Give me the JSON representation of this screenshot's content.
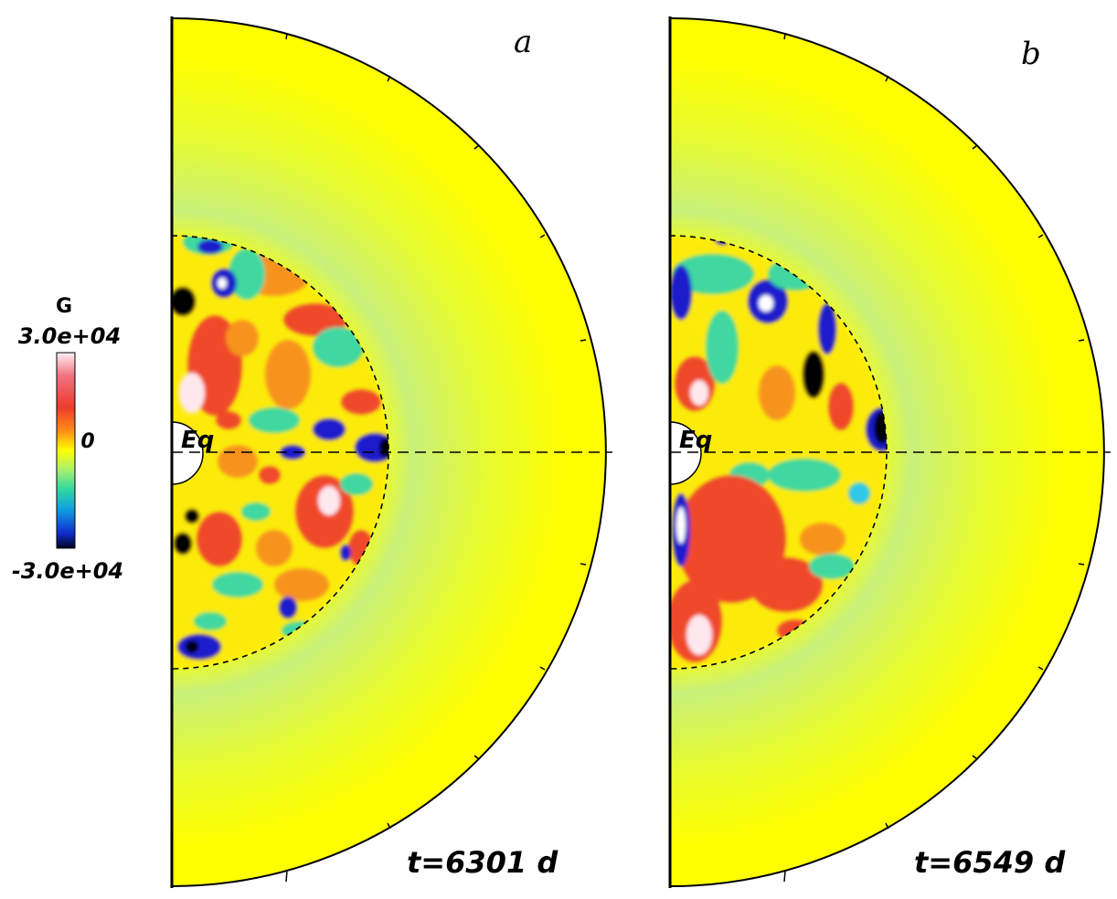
{
  "colorbar": {
    "variable": "G",
    "max_label": "3.0e+04",
    "mid_label": "0",
    "min_label": "-3.0e+04",
    "max_value": 30000,
    "min_value": -30000,
    "colors_top_to_bottom": [
      "#fff0f4",
      "#f07080",
      "#ee3b2b",
      "#ff8c1a",
      "#ffff00",
      "#a8f070",
      "#30d8a0",
      "#10a0e0",
      "#1030d0",
      "#000020"
    ]
  },
  "panels": [
    {
      "letter": "a",
      "equator_label": "Eq",
      "time_label": "t=6301 d"
    },
    {
      "letter": "b",
      "equator_label": "Eq",
      "time_label": "t=6549 d"
    }
  ],
  "colors": {
    "background_field": "#ffff00",
    "positive": "#ef4a2a",
    "orange": "#f7931e",
    "green": "#3fd8a0",
    "cyan": "#2ec8e8",
    "negative": "#1c1ccc",
    "extreme_negative": "#000000",
    "extreme_positive": "#ffe8ee"
  }
}
